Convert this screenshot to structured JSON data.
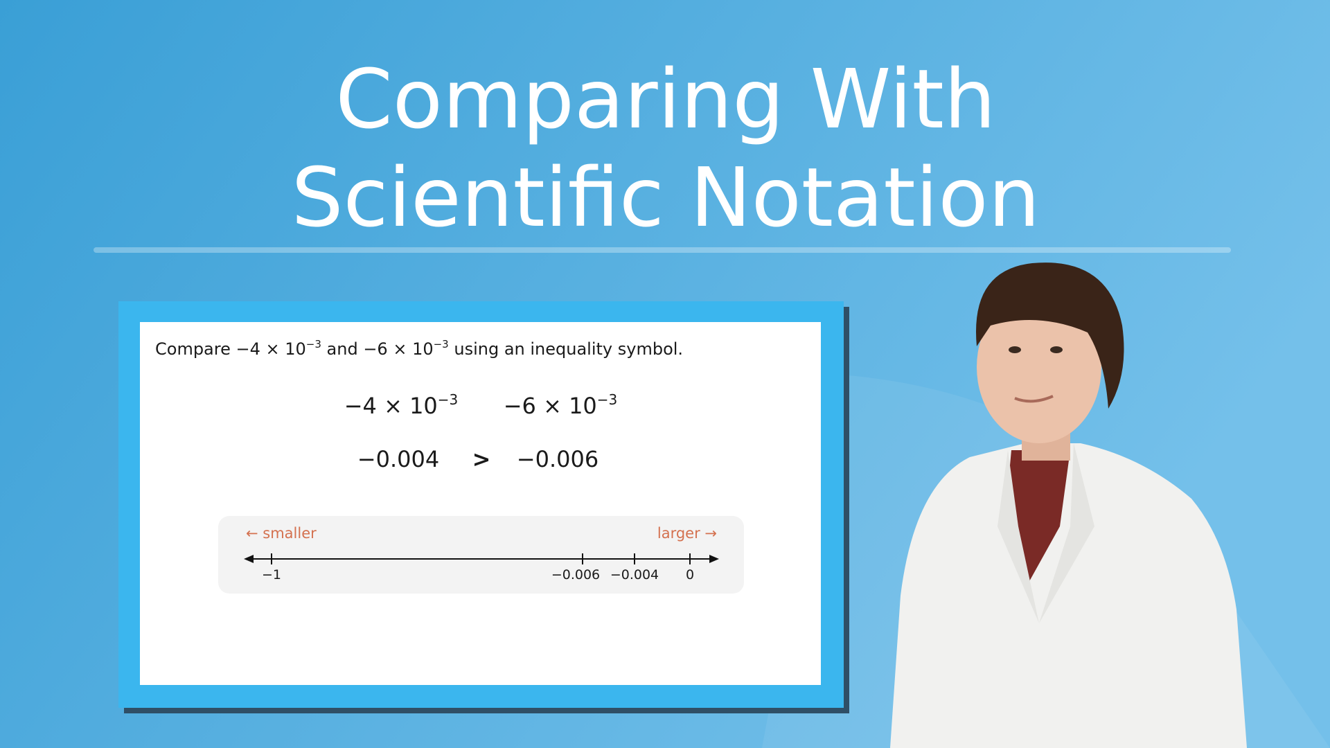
{
  "header": {
    "title_lines": [
      "Comparing With",
      "Scientific Notation"
    ]
  },
  "slide": {
    "prompt": [
      {
        "base": "Compare −4 × 10",
        "sup": "−3"
      },
      {
        "base": " and −6 × 10",
        "sup": "−3"
      },
      {
        "base": " using an inequality symbol."
      }
    ],
    "left_expression": {
      "base": "−4 × 10",
      "sup": "−3"
    },
    "right_expression": {
      "base": "−6 × 10",
      "sup": "−3"
    },
    "left_decimal": "−0.004",
    "symbol": ">",
    "right_decimal": "−0.006",
    "number_line": {
      "smaller": "← smaller",
      "larger": "larger →",
      "tick_labels": [
        "−1",
        "−0.006",
        "−0.004",
        "0"
      ]
    }
  }
}
